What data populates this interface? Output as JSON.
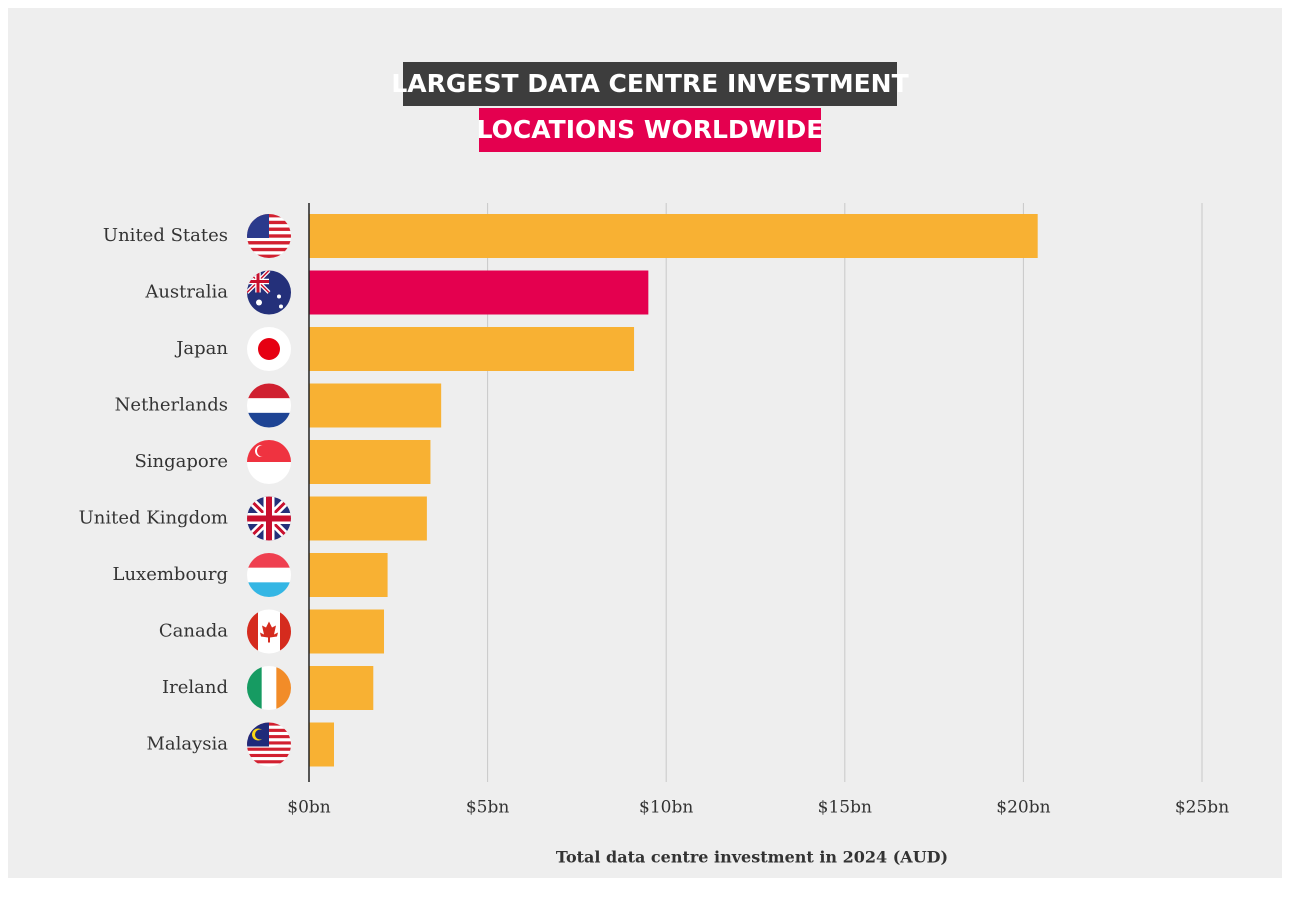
{
  "chart_data": {
    "type": "bar",
    "orientation": "horizontal",
    "title": "LARGEST DATA CENTRE INVESTMENT",
    "subtitle": "LOCATIONS WORLDWIDE",
    "x_label": "Total data centre investment in 2024 (AUD)",
    "categories": [
      "United States",
      "Australia",
      "Japan",
      "Netherlands",
      "Singapore",
      "United Kingdom",
      "Luxembourg",
      "Canada",
      "Ireland",
      "Malaysia"
    ],
    "values": [
      20.4,
      9.5,
      9.1,
      3.7,
      3.4,
      3.3,
      2.2,
      2.1,
      1.8,
      0.7
    ],
    "colors": [
      "#f8b133",
      "#e4004f",
      "#f8b133",
      "#f8b133",
      "#f8b133",
      "#f8b133",
      "#f8b133",
      "#f8b133",
      "#f8b133",
      "#f8b133"
    ],
    "xlim": [
      0,
      25
    ],
    "xticks": [
      {
        "value": 0,
        "label": "$0bn"
      },
      {
        "value": 5,
        "label": "$5bn"
      },
      {
        "value": 10,
        "label": "$10bn"
      },
      {
        "value": 15,
        "label": "$15bn"
      },
      {
        "value": 20,
        "label": "$20bn"
      },
      {
        "value": 25,
        "label": "$25bn"
      }
    ],
    "grid": true
  }
}
